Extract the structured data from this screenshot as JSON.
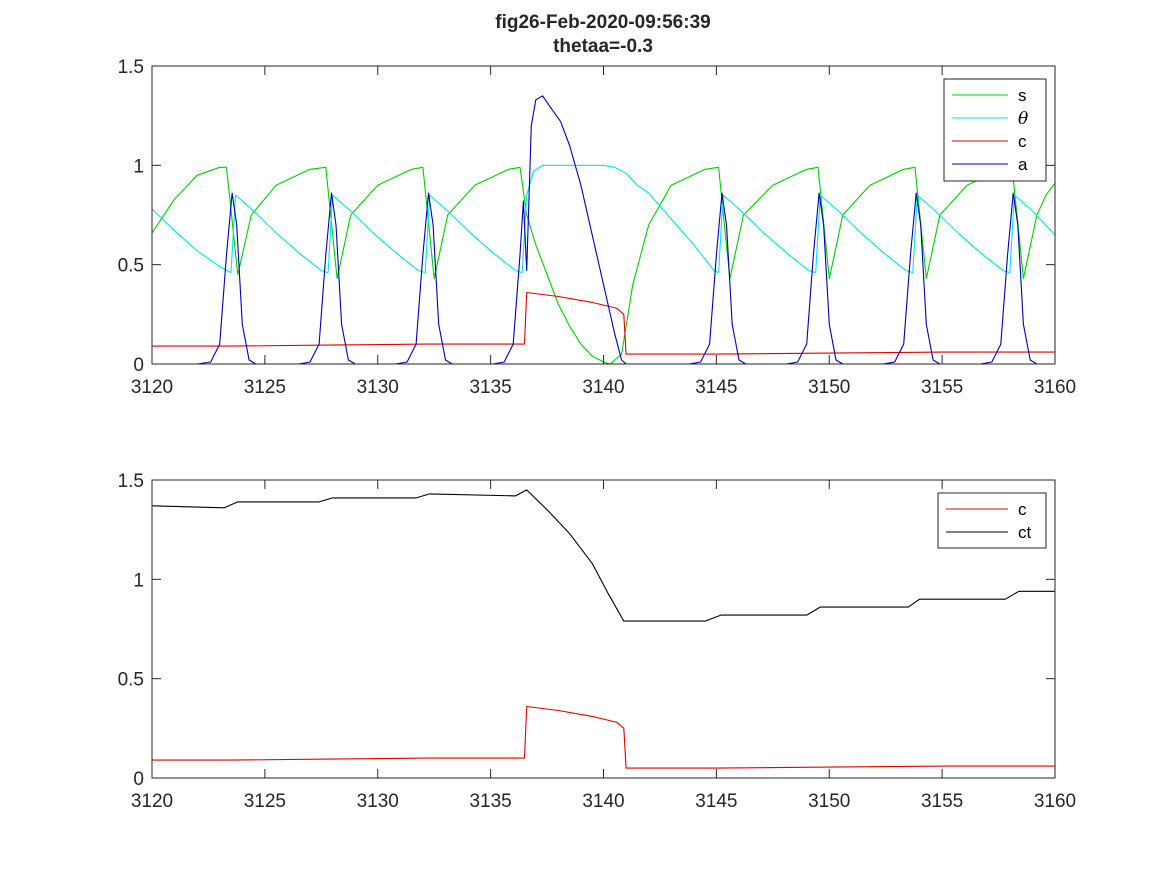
{
  "title": {
    "line1": "fig26-Feb-2020-09:56:39",
    "line2": "thetaa=-0.3"
  },
  "chart_data": [
    {
      "type": "line",
      "xlim": [
        3120,
        3160
      ],
      "ylim": [
        0,
        1.5
      ],
      "x_ticks": [
        "3120",
        "3125",
        "3130",
        "3135",
        "3140",
        "3145",
        "3150",
        "3155",
        "3160"
      ],
      "y_ticks": [
        "0",
        "0.5",
        "1",
        "1.5"
      ],
      "legend_position": "top-right",
      "grid": false,
      "series": [
        {
          "name": "s",
          "color": "#00d000",
          "points": [
            [
              3120,
              0.66
            ],
            [
              3121,
              0.83
            ],
            [
              3122,
              0.95
            ],
            [
              3123,
              0.99
            ],
            [
              3123.3,
              0.99
            ],
            [
              3123.8,
              0.45
            ],
            [
              3124.4,
              0.75
            ],
            [
              3125.5,
              0.9
            ],
            [
              3127,
              0.98
            ],
            [
              3127.7,
              0.99
            ],
            [
              3128.2,
              0.43
            ],
            [
              3128.8,
              0.75
            ],
            [
              3130,
              0.9
            ],
            [
              3131.5,
              0.98
            ],
            [
              3132,
              0.99
            ],
            [
              3132.5,
              0.43
            ],
            [
              3133.1,
              0.75
            ],
            [
              3134.3,
              0.9
            ],
            [
              3135.8,
              0.98
            ],
            [
              3136.3,
              0.99
            ],
            [
              3136.6,
              0.75
            ],
            [
              3137,
              0.6
            ],
            [
              3137.5,
              0.45
            ],
            [
              3138,
              0.3
            ],
            [
              3138.5,
              0.19
            ],
            [
              3139,
              0.1
            ],
            [
              3139.5,
              0.04
            ],
            [
              3140,
              0.01
            ],
            [
              3140.3,
              0
            ],
            [
              3140.8,
              0.05
            ],
            [
              3141.3,
              0.4
            ],
            [
              3142,
              0.7
            ],
            [
              3143,
              0.9
            ],
            [
              3144.5,
              0.98
            ],
            [
              3145.1,
              0.99
            ],
            [
              3145.6,
              0.43
            ],
            [
              3146.2,
              0.75
            ],
            [
              3147.5,
              0.9
            ],
            [
              3149,
              0.98
            ],
            [
              3149.5,
              0.99
            ],
            [
              3150,
              0.43
            ],
            [
              3150.6,
              0.75
            ],
            [
              3151.8,
              0.9
            ],
            [
              3153.3,
              0.98
            ],
            [
              3153.8,
              0.99
            ],
            [
              3154.3,
              0.43
            ],
            [
              3154.9,
              0.75
            ],
            [
              3156.1,
              0.9
            ],
            [
              3157.6,
              0.98
            ],
            [
              3158.1,
              0.99
            ],
            [
              3158.6,
              0.43
            ],
            [
              3159.2,
              0.75
            ],
            [
              3159.6,
              0.85
            ],
            [
              3160,
              0.91
            ]
          ]
        },
        {
          "name": "θ",
          "color": "#00e5e5",
          "points": [
            [
              3120,
              0.78
            ],
            [
              3121,
              0.67
            ],
            [
              3122,
              0.57
            ],
            [
              3123,
              0.49
            ],
            [
              3123.5,
              0.46
            ],
            [
              3123.7,
              0.85
            ],
            [
              3124.5,
              0.77
            ],
            [
              3125.5,
              0.66
            ],
            [
              3126.5,
              0.56
            ],
            [
              3127.5,
              0.47
            ],
            [
              3127.8,
              0.46
            ],
            [
              3128,
              0.85
            ],
            [
              3128.8,
              0.77
            ],
            [
              3129.8,
              0.66
            ],
            [
              3130.8,
              0.56
            ],
            [
              3131.8,
              0.47
            ],
            [
              3132.1,
              0.46
            ],
            [
              3132.3,
              0.85
            ],
            [
              3133.1,
              0.77
            ],
            [
              3134.1,
              0.66
            ],
            [
              3135.1,
              0.56
            ],
            [
              3136.1,
              0.47
            ],
            [
              3136.4,
              0.46
            ],
            [
              3136.6,
              0.85
            ],
            [
              3136.9,
              0.97
            ],
            [
              3137.3,
              1
            ],
            [
              3140,
              1
            ],
            [
              3140.5,
              0.99
            ],
            [
              3141,
              0.96
            ],
            [
              3141.5,
              0.9
            ],
            [
              3142,
              0.86
            ],
            [
              3143,
              0.73
            ],
            [
              3144,
              0.6
            ],
            [
              3144.9,
              0.47
            ],
            [
              3145.1,
              0.46
            ],
            [
              3145.3,
              0.85
            ],
            [
              3146.1,
              0.77
            ],
            [
              3147.1,
              0.66
            ],
            [
              3148.1,
              0.56
            ],
            [
              3149.1,
              0.47
            ],
            [
              3149.4,
              0.46
            ],
            [
              3149.6,
              0.85
            ],
            [
              3150.4,
              0.77
            ],
            [
              3151.4,
              0.66
            ],
            [
              3152.4,
              0.56
            ],
            [
              3153.4,
              0.47
            ],
            [
              3153.7,
              0.46
            ],
            [
              3153.9,
              0.85
            ],
            [
              3154.7,
              0.77
            ],
            [
              3155.7,
              0.66
            ],
            [
              3156.7,
              0.56
            ],
            [
              3157.7,
              0.47
            ],
            [
              3158,
              0.46
            ],
            [
              3158.2,
              0.85
            ],
            [
              3159,
              0.77
            ],
            [
              3160,
              0.65
            ]
          ]
        },
        {
          "name": "c",
          "color": "#e00000",
          "points": [
            [
              3120,
              0.09
            ],
            [
              3123.5,
              0.09
            ],
            [
              3127.8,
              0.095
            ],
            [
              3132.1,
              0.1
            ],
            [
              3136.5,
              0.1
            ],
            [
              3136.6,
              0.36
            ],
            [
              3138,
              0.34
            ],
            [
              3139.5,
              0.31
            ],
            [
              3140.6,
              0.28
            ],
            [
              3140.9,
              0.25
            ],
            [
              3141,
              0.05
            ],
            [
              3145,
              0.05
            ],
            [
              3150,
              0.055
            ],
            [
              3155,
              0.06
            ],
            [
              3160,
              0.06
            ]
          ]
        },
        {
          "name": "a",
          "color": "#0000b0",
          "points": [
            [
              3120,
              0
            ],
            [
              3122,
              0
            ],
            [
              3122.6,
              0.01
            ],
            [
              3123,
              0.1
            ],
            [
              3123.3,
              0.55
            ],
            [
              3123.55,
              0.86
            ],
            [
              3123.75,
              0.7
            ],
            [
              3124,
              0.2
            ],
            [
              3124.3,
              0.02
            ],
            [
              3124.6,
              0
            ],
            [
              3126.5,
              0
            ],
            [
              3127,
              0.01
            ],
            [
              3127.4,
              0.1
            ],
            [
              3127.7,
              0.55
            ],
            [
              3127.95,
              0.86
            ],
            [
              3128.15,
              0.7
            ],
            [
              3128.4,
              0.2
            ],
            [
              3128.7,
              0.02
            ],
            [
              3129,
              0
            ],
            [
              3130.8,
              0
            ],
            [
              3131.3,
              0.01
            ],
            [
              3131.7,
              0.1
            ],
            [
              3132,
              0.55
            ],
            [
              3132.25,
              0.86
            ],
            [
              3132.45,
              0.7
            ],
            [
              3132.7,
              0.2
            ],
            [
              3133,
              0.02
            ],
            [
              3133.3,
              0
            ],
            [
              3135.1,
              0
            ],
            [
              3135.6,
              0.01
            ],
            [
              3136,
              0.1
            ],
            [
              3136.3,
              0.55
            ],
            [
              3136.45,
              0.82
            ],
            [
              3136.6,
              0.47
            ],
            [
              3136.8,
              1.2
            ],
            [
              3137,
              1.33
            ],
            [
              3137.3,
              1.35
            ],
            [
              3137.6,
              1.3
            ],
            [
              3138.1,
              1.22
            ],
            [
              3138.5,
              1.1
            ],
            [
              3139,
              0.9
            ],
            [
              3139.5,
              0.65
            ],
            [
              3140,
              0.4
            ],
            [
              3140.5,
              0.15
            ],
            [
              3140.8,
              0.02
            ],
            [
              3141,
              0
            ],
            [
              3143.8,
              0
            ],
            [
              3144.3,
              0.01
            ],
            [
              3144.7,
              0.1
            ],
            [
              3145,
              0.55
            ],
            [
              3145.25,
              0.86
            ],
            [
              3145.45,
              0.7
            ],
            [
              3145.7,
              0.2
            ],
            [
              3146,
              0.02
            ],
            [
              3146.3,
              0
            ],
            [
              3148.1,
              0
            ],
            [
              3148.6,
              0.01
            ],
            [
              3149,
              0.1
            ],
            [
              3149.3,
              0.55
            ],
            [
              3149.55,
              0.86
            ],
            [
              3149.75,
              0.7
            ],
            [
              3150,
              0.2
            ],
            [
              3150.3,
              0.02
            ],
            [
              3150.6,
              0
            ],
            [
              3152.4,
              0
            ],
            [
              3152.9,
              0.01
            ],
            [
              3153.3,
              0.1
            ],
            [
              3153.6,
              0.55
            ],
            [
              3153.85,
              0.86
            ],
            [
              3154.05,
              0.7
            ],
            [
              3154.3,
              0.2
            ],
            [
              3154.6,
              0.02
            ],
            [
              3154.9,
              0
            ],
            [
              3156.7,
              0
            ],
            [
              3157.2,
              0.01
            ],
            [
              3157.6,
              0.1
            ],
            [
              3157.9,
              0.55
            ],
            [
              3158.15,
              0.86
            ],
            [
              3158.35,
              0.7
            ],
            [
              3158.6,
              0.2
            ],
            [
              3158.9,
              0.02
            ],
            [
              3159.2,
              0
            ],
            [
              3160,
              0
            ]
          ]
        }
      ]
    },
    {
      "type": "line",
      "xlim": [
        3120,
        3160
      ],
      "ylim": [
        0,
        1.5
      ],
      "x_ticks": [
        "3120",
        "3125",
        "3130",
        "3135",
        "3140",
        "3145",
        "3150",
        "3155",
        "3160"
      ],
      "y_ticks": [
        "0",
        "0.5",
        "1",
        "1.5"
      ],
      "legend_position": "top-right",
      "grid": false,
      "series": [
        {
          "name": "c",
          "color": "#e00000",
          "points": [
            [
              3120,
              0.09
            ],
            [
              3123.5,
              0.09
            ],
            [
              3127.8,
              0.095
            ],
            [
              3132.1,
              0.1
            ],
            [
              3136.5,
              0.1
            ],
            [
              3136.6,
              0.36
            ],
            [
              3138,
              0.34
            ],
            [
              3139.5,
              0.31
            ],
            [
              3140.6,
              0.28
            ],
            [
              3140.9,
              0.25
            ],
            [
              3141,
              0.05
            ],
            [
              3145,
              0.05
            ],
            [
              3150,
              0.055
            ],
            [
              3155,
              0.06
            ],
            [
              3160,
              0.06
            ]
          ]
        },
        {
          "name": "ct",
          "color": "#000000",
          "points": [
            [
              3120,
              1.37
            ],
            [
              3123.2,
              1.36
            ],
            [
              3123.8,
              1.39
            ],
            [
              3127.4,
              1.39
            ],
            [
              3128,
              1.41
            ],
            [
              3131.7,
              1.41
            ],
            [
              3132.3,
              1.43
            ],
            [
              3136.1,
              1.42
            ],
            [
              3136.6,
              1.45
            ],
            [
              3137.5,
              1.35
            ],
            [
              3138.5,
              1.23
            ],
            [
              3139.5,
              1.08
            ],
            [
              3140.2,
              0.93
            ],
            [
              3140.9,
              0.79
            ],
            [
              3144.5,
              0.79
            ],
            [
              3145.2,
              0.82
            ],
            [
              3149,
              0.82
            ],
            [
              3149.6,
              0.86
            ],
            [
              3153.5,
              0.86
            ],
            [
              3154,
              0.9
            ],
            [
              3157.8,
              0.9
            ],
            [
              3158.4,
              0.94
            ],
            [
              3160,
              0.94
            ]
          ]
        }
      ]
    }
  ]
}
